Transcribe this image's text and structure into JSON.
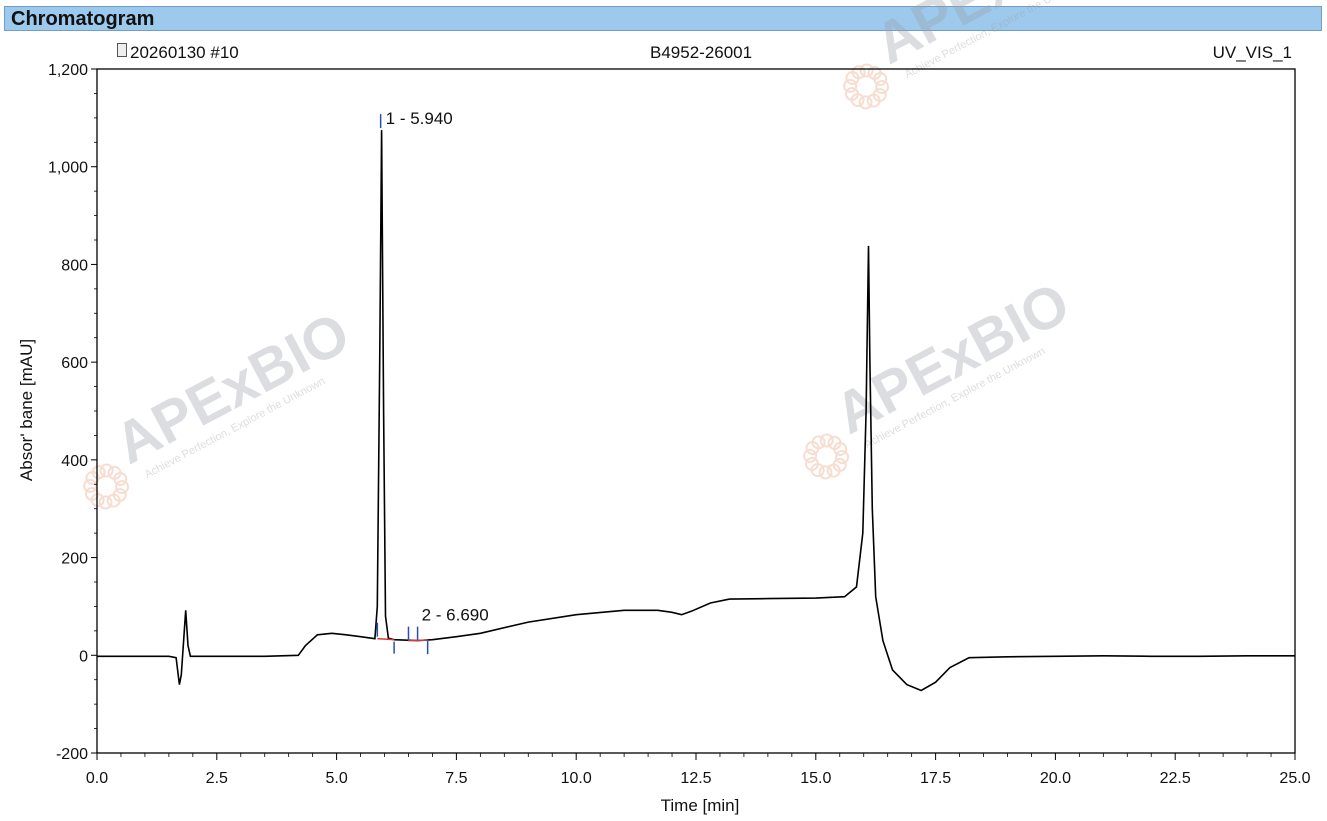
{
  "panel_title": "Chromatogram",
  "header": {
    "injection": "20260130 #10",
    "sample": "B4952-26001",
    "channel": "UV_VIS_1"
  },
  "watermark": {
    "brand": "APExBIO",
    "tagline": "Achieve Perfection, Explore the Unknown"
  },
  "colors": {
    "title_bar": "#9cc9ec",
    "trace": "#000000",
    "peak_marker": "#2b4fb0",
    "baseline_marker": "#d63a3a",
    "watermark": "#e8a07a"
  },
  "chart_data": {
    "type": "line",
    "xlabel": "Time [min]",
    "ylabel": "Absor' bane [mAU]",
    "xlim": [
      0,
      25
    ],
    "ylim": [
      -200,
      1200
    ],
    "x_ticks": [
      "0.0",
      "2.5",
      "5.0",
      "7.5",
      "10.0",
      "12.5",
      "15.0",
      "17.5",
      "20.0",
      "22.5",
      "25.0"
    ],
    "y_ticks": [
      "-200",
      "0",
      "200",
      "400",
      "600",
      "800",
      "1,000",
      "1,200"
    ],
    "grid": false,
    "series": [
      {
        "x": [
          0,
          1.5,
          1.65,
          1.72,
          1.76,
          1.8,
          1.85,
          1.9,
          1.95,
          2.1,
          3.5,
          4.2,
          4.35,
          4.6,
          4.9,
          5.2,
          5.5,
          5.8,
          5.85,
          5.9,
          5.94,
          5.98,
          6.02,
          6.08,
          6.2,
          6.69,
          7.0,
          7.5,
          8.0,
          9.0,
          10.0,
          11.0,
          11.7,
          12.0,
          12.2,
          12.4,
          12.8,
          13.2,
          14.0,
          15.0,
          15.6,
          15.85,
          15.98,
          16.05,
          16.1,
          16.13,
          16.18,
          16.25,
          16.4,
          16.6,
          16.9,
          17.2,
          17.5,
          17.8,
          18.2,
          19.0,
          20.0,
          21.0,
          22.0,
          23.0,
          24.0,
          25.0
        ],
        "y": [
          -2,
          -2,
          -5,
          -60,
          -40,
          20,
          92,
          20,
          -2,
          -2,
          -2,
          0,
          20,
          42,
          45,
          42,
          38,
          34,
          100,
          600,
          1075,
          500,
          80,
          35,
          32,
          30,
          32,
          38,
          45,
          68,
          83,
          92,
          92,
          88,
          83,
          90,
          107,
          115,
          116,
          117,
          120,
          140,
          250,
          500,
          838,
          600,
          300,
          120,
          30,
          -30,
          -60,
          -72,
          -55,
          -25,
          -5,
          -3,
          -2,
          -1,
          -2,
          -2,
          -1,
          -1
        ]
      }
    ],
    "annotations": [
      {
        "label": "1 - 5.940",
        "x": 5.94,
        "y": 1075
      },
      {
        "label": "2 - 6.690",
        "x": 6.69,
        "y": 30
      }
    ]
  }
}
